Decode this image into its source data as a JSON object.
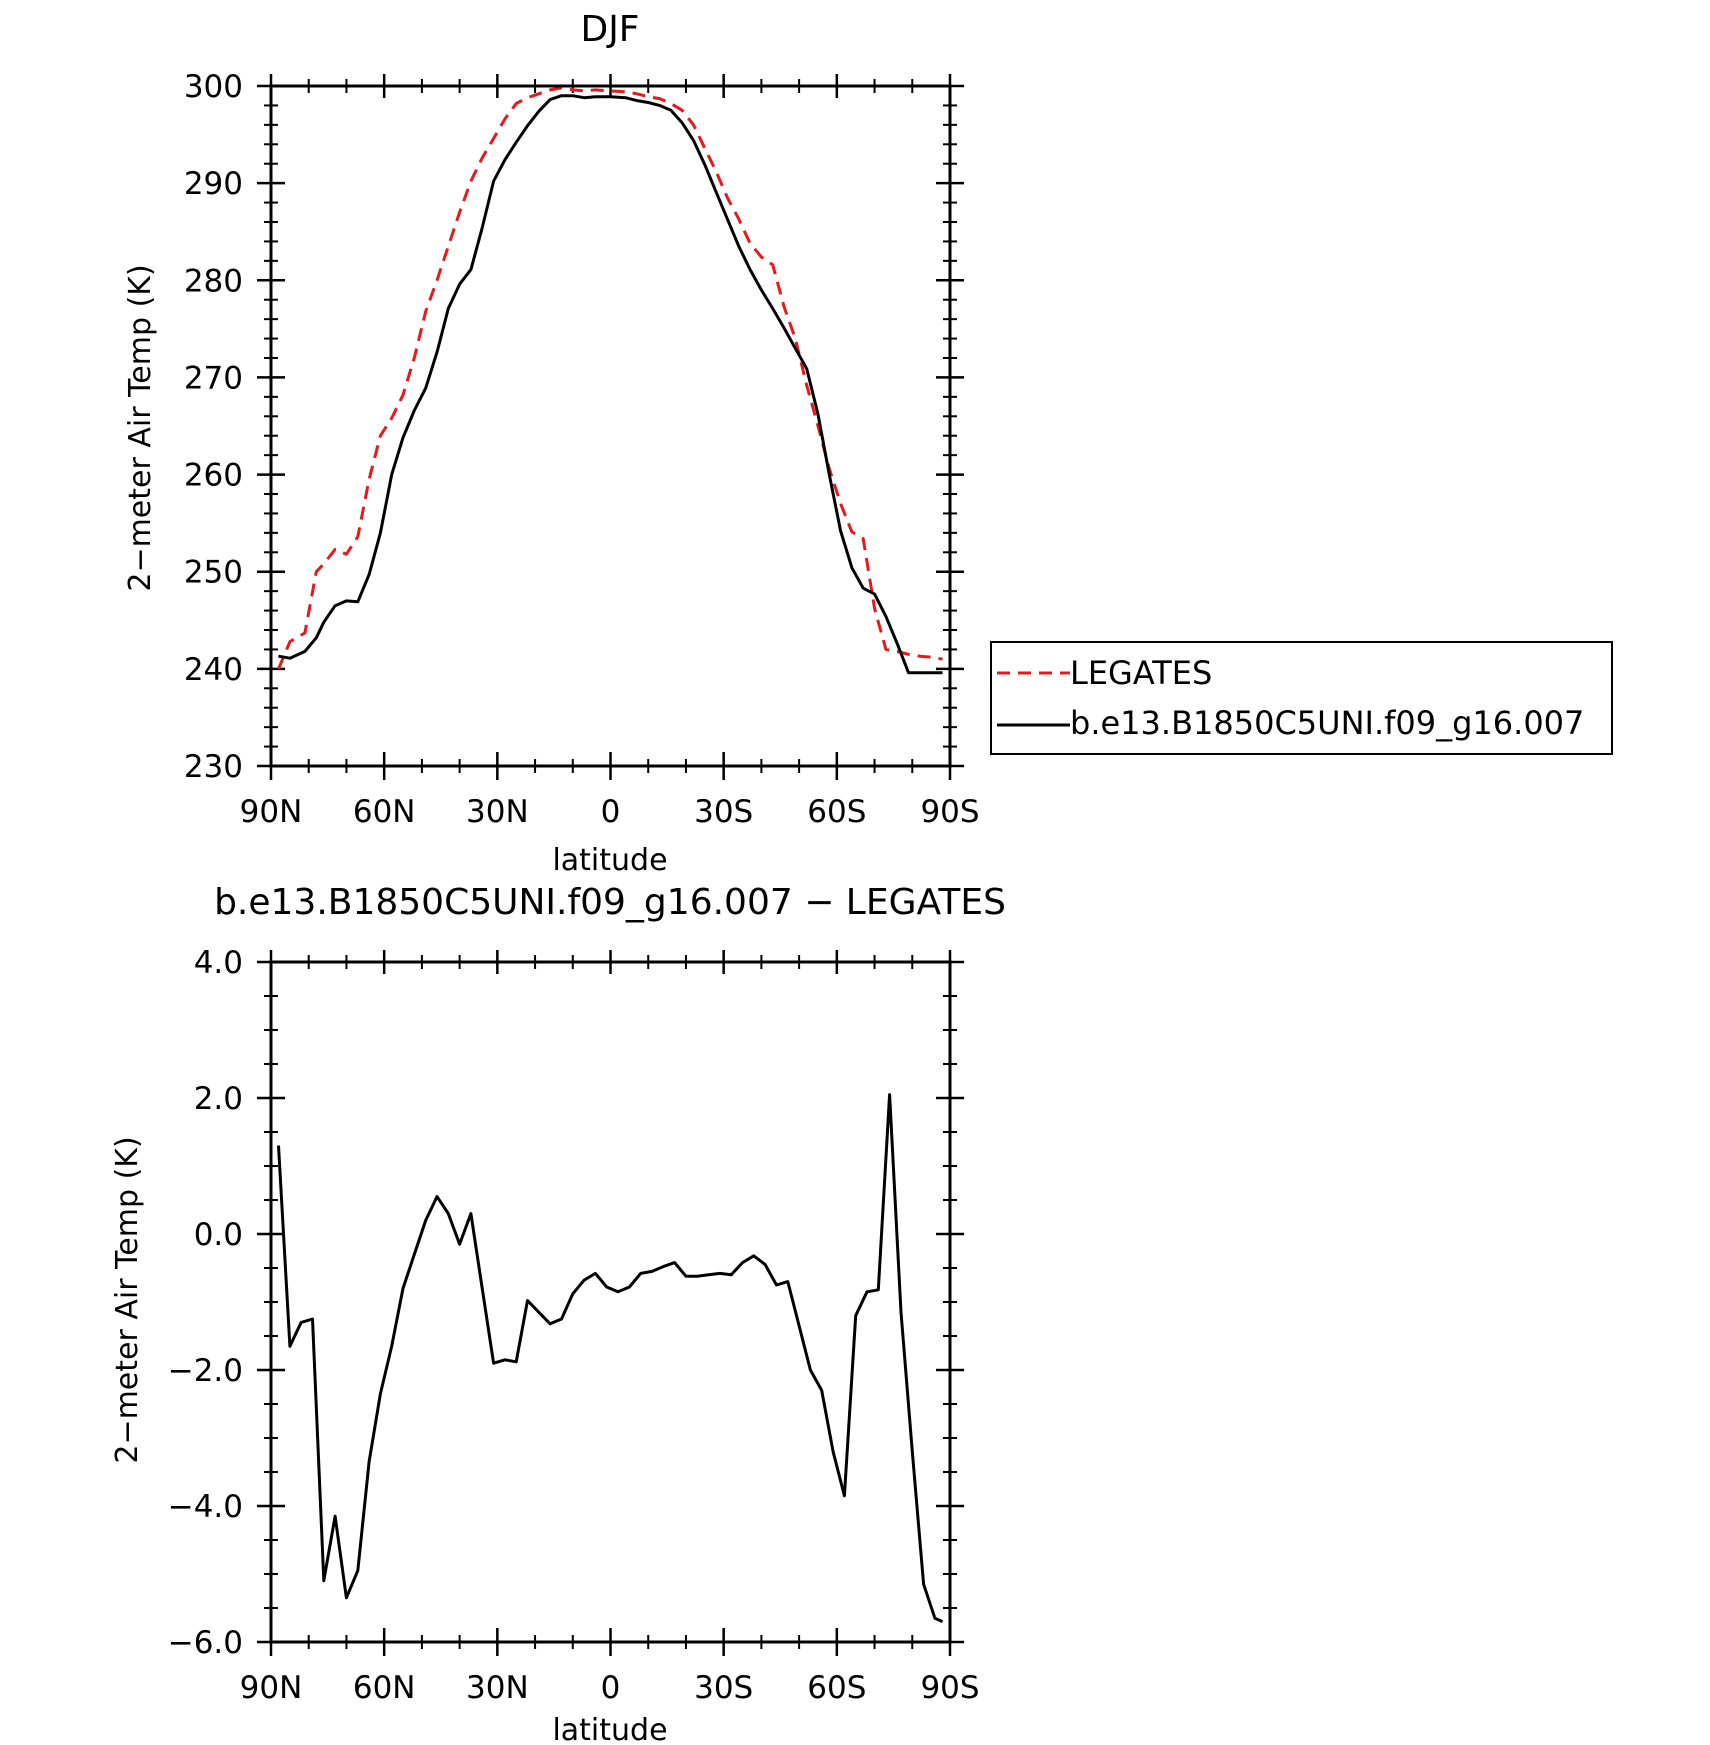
{
  "chart_data": [
    {
      "type": "line",
      "title": "DJF",
      "xlabel": "latitude",
      "ylabel": "2−meter Air Temp (K)",
      "xlim": [
        90,
        -90
      ],
      "ylim": [
        230,
        300
      ],
      "xticks": [
        90,
        60,
        30,
        0,
        -30,
        -60,
        -90
      ],
      "xtick_labels": [
        "90N",
        "60N",
        "30N",
        "0",
        "30S",
        "60S",
        "90S"
      ],
      "yticks": [
        230,
        240,
        250,
        260,
        270,
        280,
        290,
        300
      ],
      "ytick_labels": [
        "230",
        "240",
        "250",
        "260",
        "270",
        "280",
        "290",
        "300"
      ],
      "grid": false,
      "legend_position": "right, outside",
      "series": [
        {
          "name": "LEGATES",
          "color": "#e41a1c",
          "style": "dashed",
          "x": [
            88,
            85,
            81,
            78,
            76,
            73,
            70,
            67,
            64,
            61,
            58,
            55,
            52,
            49,
            46,
            43,
            40,
            37,
            34,
            31,
            28,
            25,
            22,
            19,
            16,
            13,
            10,
            7,
            4,
            0,
            -4,
            -7,
            -10,
            -13,
            -16,
            -19,
            -22,
            -25,
            -28,
            -31,
            -34,
            -37,
            -40,
            -43,
            -46,
            -49,
            -52,
            -55,
            -58,
            -61,
            -64,
            -67,
            -70,
            -73,
            -76,
            -79,
            -82,
            -85,
            -88
          ],
          "y": [
            240,
            242.8,
            243.7,
            250.0,
            250.8,
            252.3,
            251.8,
            253.6,
            259.5,
            264.0,
            265.8,
            268.2,
            272.0,
            276.8,
            280.0,
            283.5,
            287.0,
            290.2,
            292.6,
            294.6,
            296.6,
            298.2,
            298.8,
            299.2,
            299.6,
            299.8,
            299.6,
            299.5,
            299.6,
            299.5,
            299.4,
            299.2,
            298.9,
            298.7,
            298.2,
            297.5,
            296.0,
            293.6,
            291.2,
            288.5,
            286.3,
            283.8,
            282.4,
            281.6,
            277.3,
            274.0,
            269.2,
            265.0,
            260.6,
            257.0,
            254.1,
            253.4,
            246.2,
            242.0,
            241.8,
            241.5,
            241.3,
            241.2,
            241.0
          ],
          "y_note_skip": false
        },
        {
          "name": "b.e13.B1850C5UNI.f09_g16.007",
          "color": "#000000",
          "style": "solid",
          "x": [
            88,
            85,
            81,
            78,
            76,
            73,
            70,
            67,
            64,
            61,
            58,
            55,
            52,
            49,
            46,
            43,
            40,
            37,
            34,
            31,
            28,
            25,
            22,
            19,
            16,
            13,
            10,
            7,
            4,
            0,
            -4,
            -7,
            -10,
            -13,
            -16,
            -19,
            -22,
            -25,
            -28,
            -31,
            -34,
            -37,
            -40,
            -43,
            -46,
            -49,
            -52,
            -55,
            -58,
            -61,
            -64,
            -67,
            -70,
            -73,
            -76,
            -79,
            -82,
            -85,
            -88
          ],
          "y": [
            241.3,
            241.1,
            241.8,
            243.2,
            244.8,
            246.5,
            247.0,
            246.9,
            249.7,
            254.0,
            260.0,
            263.8,
            266.6,
            268.9,
            272.6,
            277.1,
            279.6,
            281.1,
            285.4,
            290.2,
            292.4,
            294.2,
            295.9,
            297.4,
            298.6,
            299.0,
            299.0,
            298.8,
            298.9,
            298.9,
            298.8,
            298.5,
            298.3,
            298.0,
            297.5,
            296.2,
            294.4,
            291.9,
            289.1,
            286.3,
            283.5,
            281.1,
            279.0,
            277.1,
            275.1,
            273.0,
            270.9,
            266.2,
            260.0,
            254.2,
            250.4,
            248.3,
            247.7,
            245.4,
            242.6,
            239.6,
            239.6,
            239.6,
            239.6
          ]
        }
      ]
    },
    {
      "type": "line",
      "title": "b.e13.B1850C5UNI.f09_g16.007 − LEGATES",
      "xlabel": "latitude",
      "ylabel": "2−meter Air Temp (K)",
      "xlim": [
        90,
        -90
      ],
      "ylim": [
        -6.0,
        4.0
      ],
      "xticks": [
        90,
        60,
        30,
        0,
        -30,
        -60,
        -90
      ],
      "xtick_labels": [
        "90N",
        "60N",
        "30N",
        "0",
        "30S",
        "60S",
        "90S"
      ],
      "yticks": [
        4.0,
        2.0,
        0.0,
        -2.0,
        -4.0,
        -6.0
      ],
      "ytick_labels": [
        "4.0",
        "2.0",
        "0.0",
        "−2.0",
        "−4.0",
        "−6.0"
      ],
      "grid": false,
      "series": [
        {
          "color": "#000000",
          "style": "solid",
          "x": [
            88,
            85,
            82,
            79,
            76,
            73,
            70,
            67,
            64,
            61,
            58,
            55,
            52,
            49,
            46,
            43,
            40,
            37,
            34,
            31,
            28,
            25,
            22,
            19,
            16,
            13,
            10,
            7,
            4,
            1,
            -2,
            -5,
            -8,
            -11,
            -14,
            -17,
            -20,
            -23,
            -26,
            -29,
            -32,
            -35,
            -38,
            -41,
            -44,
            -47,
            -50,
            -53,
            -56,
            -59,
            -62,
            -65,
            -68,
            -71,
            -74,
            -77,
            -80,
            -83,
            -86,
            -88
          ],
          "y": [
            1.3,
            -1.65,
            -1.3,
            -1.25,
            -5.1,
            -4.15,
            -5.35,
            -4.95,
            -3.35,
            -2.35,
            -1.65,
            -0.8,
            -0.3,
            0.2,
            0.55,
            0.3,
            -0.15,
            0.3,
            -0.8,
            -1.9,
            -1.85,
            -1.88,
            -0.98,
            -1.15,
            -1.32,
            -1.25,
            -0.88,
            -0.68,
            -0.58,
            -0.78,
            -0.85,
            -0.78,
            -0.58,
            -0.55,
            -0.48,
            -0.42,
            -0.62,
            -0.62,
            -0.6,
            -0.58,
            -0.6,
            -0.42,
            -0.32,
            -0.45,
            -0.75,
            -0.7,
            -1.35,
            -2.0,
            -2.3,
            -3.2,
            -3.85,
            -1.2,
            -0.85,
            -0.82,
            2.05,
            -1.15,
            -3.2,
            -5.15,
            -5.65,
            -5.7
          ]
        }
      ]
    }
  ],
  "legend": {
    "entries": [
      "LEGATES",
      "b.e13.B1850C5UNI.f09_g16.007"
    ]
  }
}
